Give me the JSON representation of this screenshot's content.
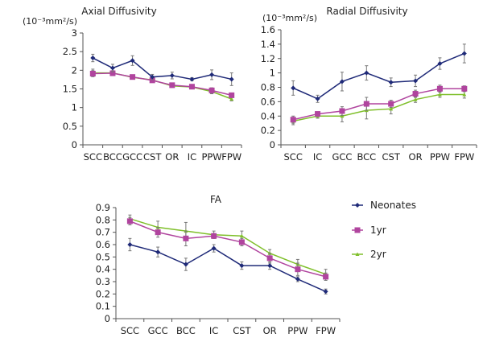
{
  "legend": [
    {
      "name": "Neonates",
      "color": "#1f2a78",
      "marker": "diamond"
    },
    {
      "name": "1yr",
      "color": "#b0449e",
      "marker": "square"
    },
    {
      "name": "2yr",
      "color": "#7fbf2a",
      "marker": "triangle"
    }
  ],
  "chart_data": [
    {
      "type": "line",
      "title": "Axial Diffusivity",
      "unit_label": "(10⁻³mm²/s)",
      "xlabel": "",
      "ylabel": "(10^-3 mm^2/s)",
      "categories": [
        "SCC",
        "BCC",
        "GCC",
        "CST",
        "OR",
        "IC",
        "PPW",
        "FPW"
      ],
      "ylim": [
        0,
        3
      ],
      "yticks": [
        "0",
        "0.5",
        "1",
        "1.5",
        "2",
        "2.5",
        "3"
      ],
      "ytick_values": [
        0,
        0.5,
        1,
        1.5,
        2,
        2.5,
        3
      ],
      "grid": false,
      "series": [
        {
          "name": "Neonates",
          "values": [
            2.33,
            2.06,
            2.26,
            1.82,
            1.86,
            1.76,
            1.88,
            1.76
          ],
          "errors": [
            0.1,
            0.1,
            0.13,
            0.07,
            0.09,
            0.04,
            0.13,
            0.17
          ]
        },
        {
          "name": "1yr",
          "values": [
            1.91,
            1.92,
            1.82,
            1.73,
            1.6,
            1.56,
            1.46,
            1.33
          ],
          "errors": [
            0.08,
            0.06,
            0.05,
            0.05,
            0.04,
            0.04,
            0.07,
            0.04
          ]
        },
        {
          "name": "2yr",
          "values": [
            1.93,
            1.93,
            1.81,
            1.74,
            1.58,
            1.55,
            1.43,
            1.23
          ],
          "errors": [
            0.1,
            0.06,
            0.05,
            0.05,
            0.04,
            0.04,
            0.06,
            0.05
          ]
        }
      ]
    },
    {
      "type": "line",
      "title": "Radial Diffusivity",
      "unit_label": "(10⁻³mm²/s)",
      "xlabel": "",
      "ylabel": "(10^-3 mm^2/s)",
      "categories": [
        "SCC",
        "IC",
        "GCC",
        "BCC",
        "CST",
        "OR",
        "PPW",
        "FPW"
      ],
      "ylim": [
        0,
        1.6
      ],
      "yticks": [
        "0",
        "0.2",
        "0.4",
        "0.6",
        "0.8",
        "1",
        "1.2",
        "1.4",
        "1.6"
      ],
      "ytick_values": [
        0,
        0.2,
        0.4,
        0.6,
        0.8,
        1,
        1.2,
        1.4,
        1.6
      ],
      "grid": false,
      "series": [
        {
          "name": "Neonates",
          "values": [
            0.79,
            0.64,
            0.88,
            1.0,
            0.87,
            0.89,
            1.13,
            1.27
          ],
          "errors": [
            0.1,
            0.05,
            0.13,
            0.1,
            0.06,
            0.08,
            0.08,
            0.13
          ]
        },
        {
          "name": "1yr",
          "values": [
            0.35,
            0.43,
            0.47,
            0.57,
            0.57,
            0.71,
            0.78,
            0.78
          ],
          "errors": [
            0.05,
            0.03,
            0.06,
            0.09,
            0.05,
            0.05,
            0.05,
            0.04
          ]
        },
        {
          "name": "2yr",
          "values": [
            0.33,
            0.4,
            0.4,
            0.48,
            0.5,
            0.63,
            0.7,
            0.7
          ],
          "errors": [
            0.05,
            0.03,
            0.08,
            0.12,
            0.07,
            0.04,
            0.04,
            0.05
          ]
        }
      ]
    },
    {
      "type": "line",
      "title": "FA",
      "unit_label": "",
      "xlabel": "",
      "ylabel": "",
      "categories": [
        "SCC",
        "GCC",
        "BCC",
        "IC",
        "CST",
        "OR",
        "PPW",
        "FPW"
      ],
      "ylim": [
        0,
        0.9
      ],
      "yticks": [
        "0",
        "0.1",
        "0.2",
        "0.3",
        "0.4",
        "0.5",
        "0.6",
        "0.7",
        "0.8",
        "0.9"
      ],
      "ytick_values": [
        0,
        0.1,
        0.2,
        0.3,
        0.4,
        0.5,
        0.6,
        0.7,
        0.8,
        0.9
      ],
      "grid": false,
      "series": [
        {
          "name": "Neonates",
          "values": [
            0.6,
            0.54,
            0.44,
            0.57,
            0.43,
            0.43,
            0.32,
            0.22
          ],
          "errors": [
            0.05,
            0.04,
            0.05,
            0.03,
            0.03,
            0.03,
            0.02,
            0.02
          ]
        },
        {
          "name": "1yr",
          "values": [
            0.79,
            0.7,
            0.65,
            0.67,
            0.62,
            0.49,
            0.4,
            0.34
          ],
          "errors": [
            0.03,
            0.04,
            0.06,
            0.02,
            0.03,
            0.04,
            0.05,
            0.03
          ]
        },
        {
          "name": "2yr",
          "values": [
            0.81,
            0.74,
            0.71,
            0.68,
            0.67,
            0.53,
            0.44,
            0.36
          ],
          "errors": [
            0.03,
            0.05,
            0.07,
            0.03,
            0.04,
            0.03,
            0.04,
            0.04
          ]
        }
      ]
    }
  ]
}
